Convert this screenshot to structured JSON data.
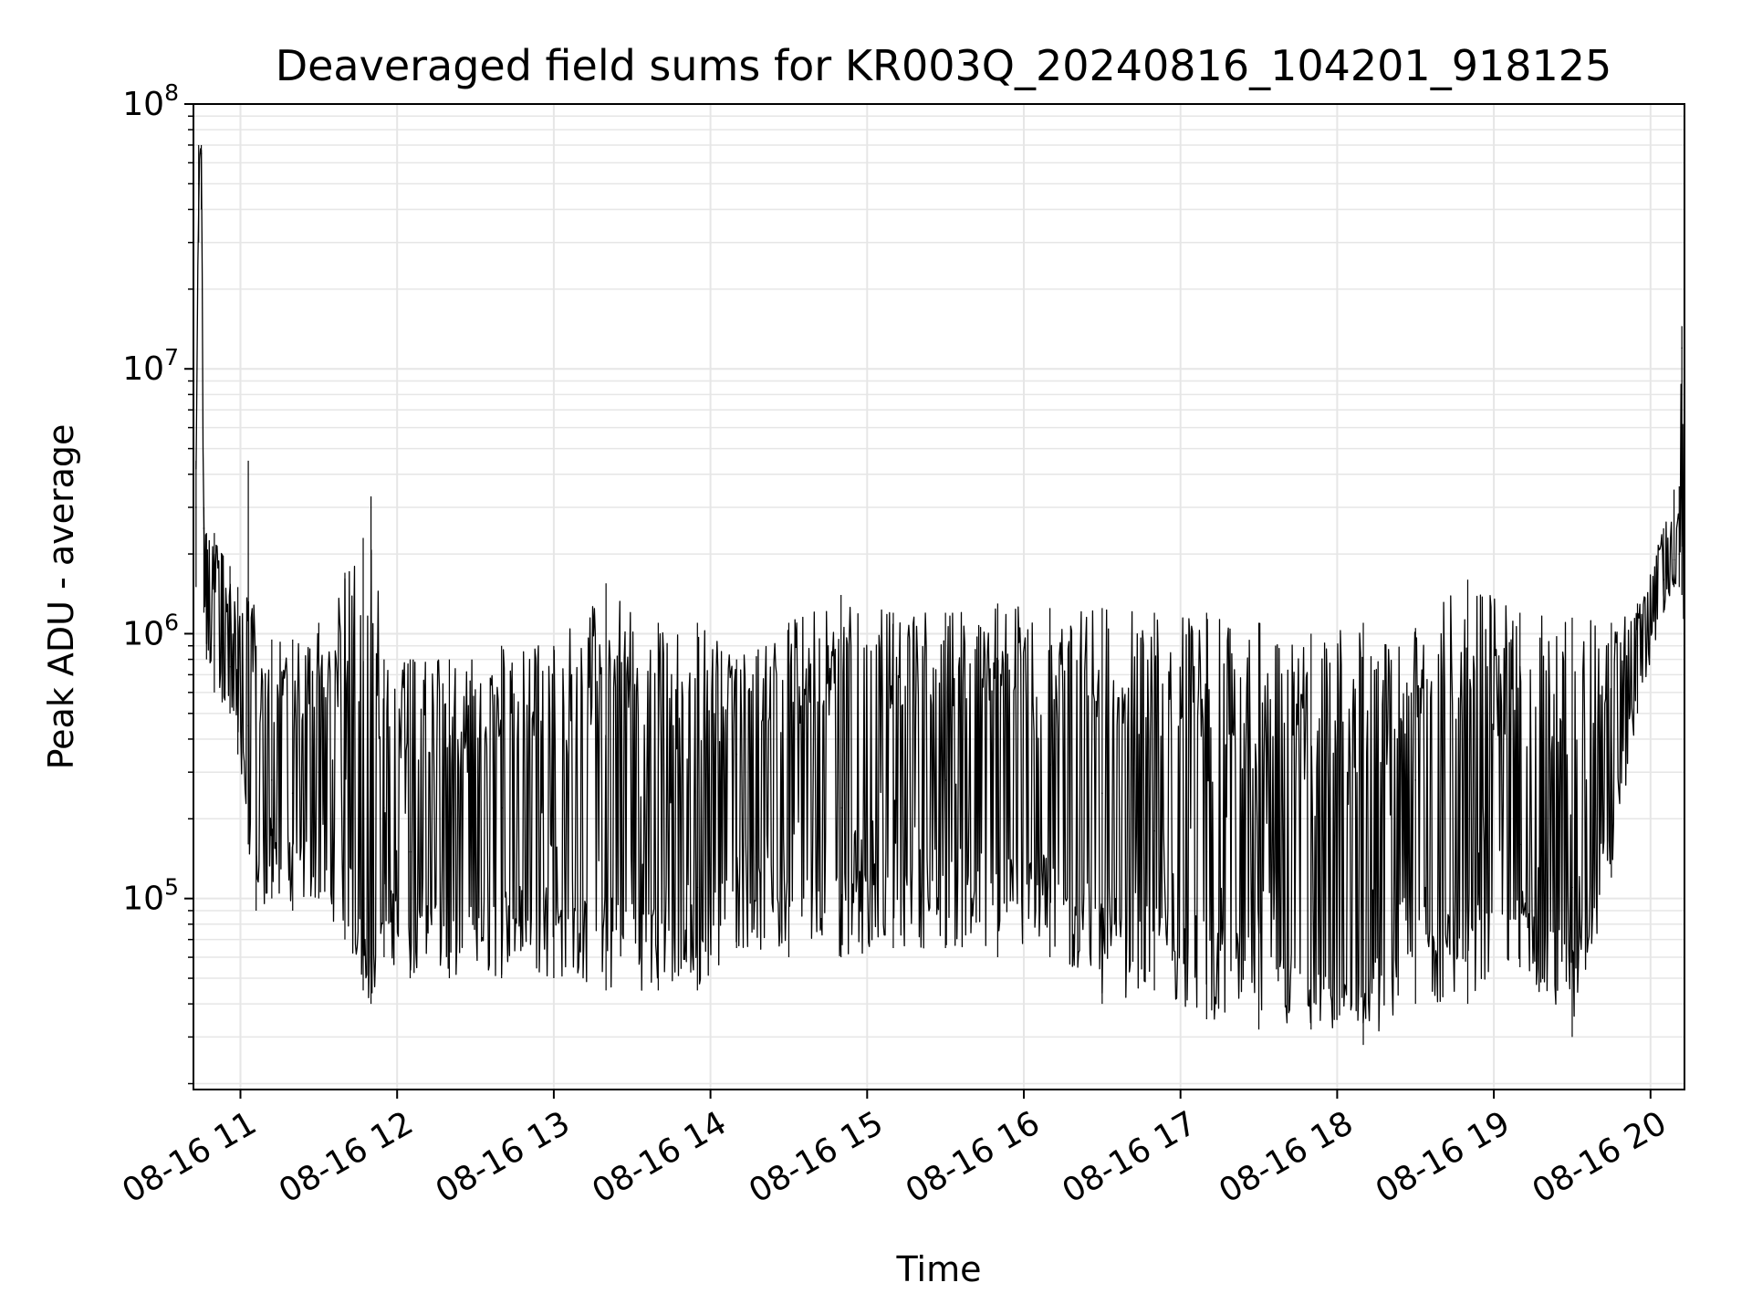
{
  "chart_data": {
    "type": "line",
    "title": "Deaveraged field sums for KR003Q_20240816_104201_918125",
    "xlabel": "Time",
    "ylabel": "Peak ADU - average",
    "yscale": "log",
    "ylim": [
      19000,
      100000000
    ],
    "xlim": [
      "2024-08-16T10:42:00",
      "2024-08-16T20:13:00"
    ],
    "grid": true,
    "line_color": "#000000",
    "grid_color": "#e6e6e6",
    "x_ticks": [
      {
        "label": "08-16 11",
        "value": "2024-08-16T11:00:00"
      },
      {
        "label": "08-16 12",
        "value": "2024-08-16T12:00:00"
      },
      {
        "label": "08-16 13",
        "value": "2024-08-16T13:00:00"
      },
      {
        "label": "08-16 14",
        "value": "2024-08-16T14:00:00"
      },
      {
        "label": "08-16 15",
        "value": "2024-08-16T15:00:00"
      },
      {
        "label": "08-16 16",
        "value": "2024-08-16T16:00:00"
      },
      {
        "label": "08-16 17",
        "value": "2024-08-16T17:00:00"
      },
      {
        "label": "08-16 18",
        "value": "2024-08-16T18:00:00"
      },
      {
        "label": "08-16 19",
        "value": "2024-08-16T19:00:00"
      },
      {
        "label": "08-16 20",
        "value": "2024-08-16T20:00:00"
      }
    ],
    "y_ticks": [
      {
        "base": "10",
        "exp": "5",
        "value": 100000
      },
      {
        "base": "10",
        "exp": "6",
        "value": 1000000
      },
      {
        "base": "10",
        "exp": "7",
        "value": 10000000
      },
      {
        "base": "10",
        "exp": "8",
        "value": 100000000
      }
    ],
    "series": [
      {
        "x": [
          "2024-08-16T10:43:00",
          "2024-08-16T10:44:00",
          "2024-08-16T10:45:00",
          "2024-08-16T10:46:00",
          "2024-08-16T10:47:00",
          "2024-08-16T10:50:00",
          "2024-08-16T10:53:00",
          "2024-08-16T10:56:00",
          "2024-08-16T10:59:00",
          "2024-08-16T11:03:00",
          "2024-08-16T11:06:00",
          "2024-08-16T11:12:00",
          "2024-08-16T11:20:00",
          "2024-08-16T11:30:00",
          "2024-08-16T11:40:00",
          "2024-08-16T11:47:00",
          "2024-08-16T11:50:00",
          "2024-08-16T11:55:00",
          "2024-08-16T12:05:00",
          "2024-08-16T12:20:00",
          "2024-08-16T12:40:00",
          "2024-08-16T13:00:00",
          "2024-08-16T13:20:00",
          "2024-08-16T13:40:00",
          "2024-08-16T13:55:00",
          "2024-08-16T14:10:00",
          "2024-08-16T14:30:00",
          "2024-08-16T14:50:00",
          "2024-08-16T15:10:00",
          "2024-08-16T15:30:00",
          "2024-08-16T15:50:00",
          "2024-08-16T16:10:00",
          "2024-08-16T16:30:00",
          "2024-08-16T16:50:00",
          "2024-08-16T17:10:00",
          "2024-08-16T17:30:00",
          "2024-08-16T17:50:00",
          "2024-08-16T18:10:00",
          "2024-08-16T18:30:00",
          "2024-08-16T18:50:00",
          "2024-08-16T19:10:00",
          "2024-08-16T19:30:00",
          "2024-08-16T19:45:00",
          "2024-08-16T19:55:00",
          "2024-08-16T20:05:00",
          "2024-08-16T20:09:00",
          "2024-08-16T20:11:00",
          "2024-08-16T20:12:00",
          "2024-08-16T20:13:00"
        ],
        "y": [
          3000000,
          50000000,
          65000000,
          2500000,
          1500000,
          900000,
          850000,
          750000,
          650000,
          450000,
          300000,
          280000,
          250000,
          300000,
          350000,
          150000,
          60000,
          220000,
          150000,
          170000,
          220000,
          200000,
          180000,
          160000,
          110000,
          350000,
          200000,
          220000,
          300000,
          280000,
          300000,
          320000,
          250000,
          180000,
          150000,
          120000,
          80000,
          70000,
          280000,
          200000,
          160000,
          110000,
          350000,
          900000,
          1600000,
          1900000,
          2000000,
          12000000,
          1000000
        ],
        "y_min": [
          1500000,
          30000000,
          40000000,
          1200000,
          800000,
          600000,
          550000,
          500000,
          350000,
          160000,
          90000,
          100000,
          90000,
          100000,
          70000,
          45000,
          40000,
          60000,
          50000,
          50000,
          50000,
          50000,
          45000,
          45000,
          45000,
          65000,
          60000,
          60000,
          65000,
          65000,
          60000,
          60000,
          40000,
          45000,
          35000,
          32000,
          32000,
          28000,
          40000,
          40000,
          55000,
          30000,
          120000,
          500000,
          1200000,
          1500000,
          1500000,
          1400000,
          850000
        ],
        "y_max": [
          4500000,
          70000000,
          70000000,
          3000000,
          2400000,
          2400000,
          2000000,
          1800000,
          1500000,
          4500000,
          900000,
          950000,
          950000,
          1100000,
          1700000,
          2300000,
          3300000,
          800000,
          800000,
          800000,
          900000,
          900000,
          1550000,
          1100000,
          1100000,
          800000,
          1100000,
          1400000,
          1200000,
          1200000,
          1300000,
          1250000,
          1250000,
          1200000,
          1200000,
          1100000,
          1000000,
          1100000,
          1050000,
          1600000,
          1200000,
          1150000,
          1100000,
          1300000,
          2500000,
          3500000,
          3600000,
          14500000,
          1300000
        ]
      }
    ]
  }
}
